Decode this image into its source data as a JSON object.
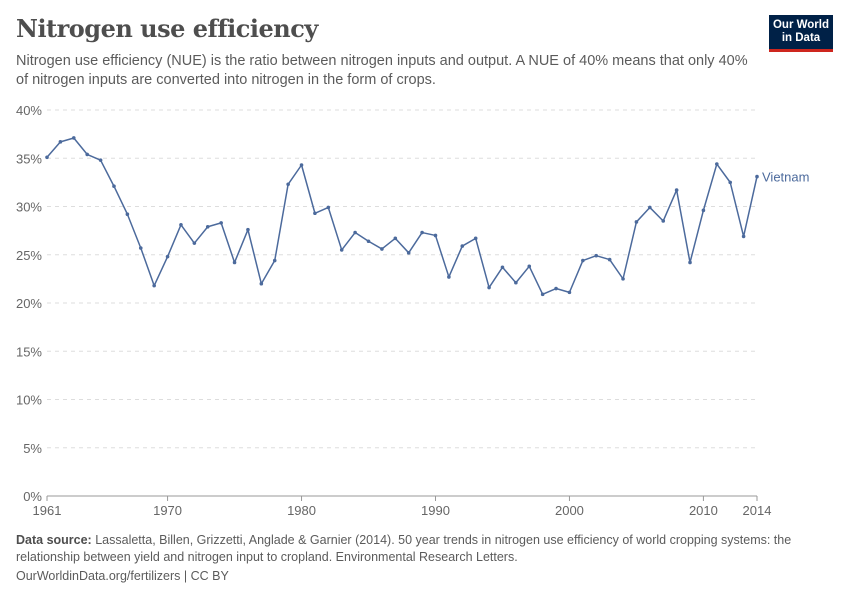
{
  "header": {
    "title": "Nitrogen use efficiency",
    "subtitle": "Nitrogen use efficiency (NUE) is the ratio between nitrogen inputs and output. A NUE of 40% means that only 40% of nitrogen inputs are converted into nitrogen in the form of crops.",
    "logo_text": "Our World in Data"
  },
  "chart_data": {
    "type": "line",
    "title": "Nitrogen use efficiency",
    "xlabel": "",
    "ylabel": "",
    "xlim": [
      1961,
      2014
    ],
    "ylim": [
      0,
      40
    ],
    "y_ticks": [
      "0%",
      "5%",
      "10%",
      "15%",
      "20%",
      "25%",
      "30%",
      "35%",
      "40%"
    ],
    "y_tick_values": [
      0,
      5,
      10,
      15,
      20,
      25,
      30,
      35,
      40
    ],
    "x_ticks": [
      "1961",
      "1970",
      "1980",
      "1990",
      "2000",
      "2010",
      "2014"
    ],
    "x_tick_values": [
      1961,
      1970,
      1980,
      1990,
      2000,
      2010,
      2014
    ],
    "grid": "horizontal dashed",
    "colors": {
      "series": "#4c6a9c",
      "grid": "#dddddd"
    },
    "series": [
      {
        "name": "Vietnam",
        "x": [
          1961,
          1962,
          1963,
          1964,
          1965,
          1966,
          1967,
          1968,
          1969,
          1970,
          1971,
          1972,
          1973,
          1974,
          1975,
          1976,
          1977,
          1978,
          1979,
          1980,
          1981,
          1982,
          1983,
          1984,
          1985,
          1986,
          1987,
          1988,
          1989,
          1990,
          1991,
          1992,
          1993,
          1994,
          1995,
          1996,
          1997,
          1998,
          1999,
          2000,
          2001,
          2002,
          2003,
          2004,
          2005,
          2006,
          2007,
          2008,
          2009,
          2010,
          2011,
          2012,
          2013,
          2014
        ],
        "values": [
          35.1,
          36.7,
          37.1,
          35.4,
          34.8,
          32.1,
          29.2,
          25.7,
          21.8,
          24.8,
          28.1,
          26.2,
          27.9,
          28.3,
          24.2,
          27.6,
          22.0,
          24.4,
          32.3,
          34.3,
          29.3,
          29.9,
          25.5,
          27.3,
          26.4,
          25.6,
          26.7,
          25.2,
          27.3,
          27.0,
          22.7,
          25.9,
          26.7,
          21.6,
          23.7,
          22.1,
          23.8,
          20.9,
          21.5,
          21.1,
          24.4,
          24.9,
          24.5,
          22.5,
          28.4,
          29.9,
          28.5,
          31.7,
          24.2,
          29.6,
          34.4,
          32.5,
          26.9,
          33.1
        ]
      }
    ]
  },
  "footer": {
    "source_label": "Data source:",
    "source_text": "Lassaletta, Billen, Grizzetti, Anglade & Garnier (2014). 50 year trends in nitrogen use efficiency of world cropping systems: the relationship between yield and nitrogen input to cropland. Environmental Research Letters.",
    "credit": "OurWorldinData.org/fertilizers | CC BY"
  }
}
